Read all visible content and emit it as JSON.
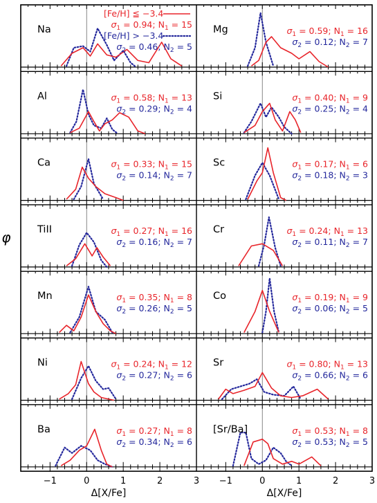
{
  "chart_data": {
    "type": "line",
    "ylabel": "φ",
    "xlabel": "Δ[X/Fe]",
    "xlim": [
      -1.8,
      3.0
    ],
    "xticks": [
      "−1",
      "0",
      "1",
      "2",
      "3"
    ],
    "legend": {
      "red_label": "[Fe/H] ≦ −3.4",
      "blue_label": "[Fe/H] > −3.4",
      "placement": "top-left panel"
    },
    "colors": {
      "red": "#e8242a",
      "blue": "#24289c"
    },
    "panels": [
      {
        "element": "Na",
        "col": 0,
        "row": 0,
        "s1": "0.94",
        "n1": "15",
        "s2": "0.46",
        "n2": "5",
        "red": [
          [
            -0.7,
            0.02
          ],
          [
            -0.4,
            0.25
          ],
          [
            -0.1,
            0.35
          ],
          [
            0.1,
            0.2
          ],
          [
            0.3,
            0.42
          ],
          [
            0.55,
            0.22
          ],
          [
            0.8,
            0.18
          ],
          [
            1.1,
            0.32
          ],
          [
            1.4,
            0.12
          ],
          [
            1.7,
            0.08
          ],
          [
            2.05,
            0.45
          ],
          [
            2.3,
            0.15
          ],
          [
            2.6,
            0.02
          ]
        ],
        "blue": [
          [
            -0.55,
            0.02
          ],
          [
            -0.35,
            0.35
          ],
          [
            -0.1,
            0.38
          ],
          [
            0.1,
            0.28
          ],
          [
            0.3,
            0.7
          ],
          [
            0.55,
            0.4
          ],
          [
            0.75,
            0.12
          ],
          [
            1.0,
            0.3
          ],
          [
            1.2,
            0.08
          ],
          [
            1.35,
            0.0
          ]
        ]
      },
      {
        "element": "Mg",
        "col": 1,
        "row": 0,
        "s1": "0.59",
        "n1": "16",
        "s2": "0.12",
        "n2": "7",
        "red": [
          [
            -0.3,
            0.02
          ],
          [
            -0.1,
            0.12
          ],
          [
            0.1,
            0.45
          ],
          [
            0.25,
            0.55
          ],
          [
            0.5,
            0.35
          ],
          [
            0.8,
            0.25
          ],
          [
            1.0,
            0.15
          ],
          [
            1.3,
            0.28
          ],
          [
            1.55,
            0.1
          ],
          [
            1.8,
            0.0
          ]
        ],
        "blue": [
          [
            -0.4,
            0.02
          ],
          [
            -0.2,
            0.35
          ],
          [
            -0.05,
            0.98
          ],
          [
            0.1,
            0.45
          ],
          [
            0.3,
            0.02
          ]
        ]
      },
      {
        "element": "Al",
        "col": 0,
        "row": 1,
        "s1": "0.58",
        "n1": "13",
        "s2": "0.29",
        "n2": "4",
        "red": [
          [
            -0.45,
            0.02
          ],
          [
            -0.2,
            0.1
          ],
          [
            0.05,
            0.4
          ],
          [
            0.2,
            0.22
          ],
          [
            0.35,
            0.05
          ],
          [
            0.5,
            0.18
          ],
          [
            0.7,
            0.25
          ],
          [
            0.9,
            0.38
          ],
          [
            1.15,
            0.3
          ],
          [
            1.4,
            0.05
          ],
          [
            1.6,
            0.0
          ]
        ],
        "blue": [
          [
            -0.45,
            0.02
          ],
          [
            -0.28,
            0.22
          ],
          [
            -0.1,
            0.8
          ],
          [
            0.05,
            0.35
          ],
          [
            0.2,
            0.15
          ],
          [
            0.4,
            0.1
          ],
          [
            0.55,
            0.28
          ],
          [
            0.7,
            0.08
          ],
          [
            0.85,
            0.0
          ]
        ]
      },
      {
        "element": "Si",
        "col": 1,
        "row": 1,
        "s1": "0.40",
        "n1": "9",
        "s2": "0.25",
        "n2": "4",
        "red": [
          [
            -0.5,
            0.02
          ],
          [
            -0.2,
            0.15
          ],
          [
            0.0,
            0.4
          ],
          [
            0.2,
            0.55
          ],
          [
            0.35,
            0.25
          ],
          [
            0.55,
            0.05
          ],
          [
            0.75,
            0.4
          ],
          [
            0.9,
            0.25
          ],
          [
            1.05,
            0.02
          ]
        ],
        "blue": [
          [
            -0.5,
            0.02
          ],
          [
            -0.3,
            0.22
          ],
          [
            -0.05,
            0.55
          ],
          [
            0.1,
            0.3
          ],
          [
            0.25,
            0.48
          ],
          [
            0.45,
            0.3
          ],
          [
            0.6,
            0.12
          ],
          [
            0.8,
            0.0
          ]
        ]
      },
      {
        "element": "Ca",
        "col": 0,
        "row": 2,
        "s1": "0.33",
        "n1": "15",
        "s2": "0.14",
        "n2": "7",
        "red": [
          [
            -0.55,
            0.02
          ],
          [
            -0.3,
            0.2
          ],
          [
            -0.12,
            0.6
          ],
          [
            0.05,
            0.4
          ],
          [
            0.25,
            0.25
          ],
          [
            0.5,
            0.12
          ],
          [
            0.8,
            0.05
          ],
          [
            1.0,
            0.0
          ]
        ],
        "blue": [
          [
            -0.35,
            0.02
          ],
          [
            -0.15,
            0.25
          ],
          [
            0.05,
            0.75
          ],
          [
            0.2,
            0.3
          ],
          [
            0.45,
            0.02
          ]
        ]
      },
      {
        "element": "Sc",
        "col": 1,
        "row": 2,
        "s1": "0.17",
        "n1": "6",
        "s2": "0.18",
        "n2": "3",
        "red": [
          [
            -0.4,
            0.02
          ],
          [
            -0.15,
            0.35
          ],
          [
            0.0,
            0.5
          ],
          [
            0.15,
            0.95
          ],
          [
            0.3,
            0.5
          ],
          [
            0.5,
            0.05
          ],
          [
            0.65,
            0.0
          ]
        ],
        "blue": [
          [
            -0.45,
            0.02
          ],
          [
            -0.2,
            0.45
          ],
          [
            0.0,
            0.68
          ],
          [
            0.2,
            0.45
          ],
          [
            0.45,
            0.02
          ]
        ]
      },
      {
        "element": "TiII",
        "col": 0,
        "row": 3,
        "s1": "0.27",
        "n1": "16",
        "s2": "0.16",
        "n2": "7",
        "red": [
          [
            -0.55,
            0.02
          ],
          [
            -0.3,
            0.15
          ],
          [
            -0.05,
            0.42
          ],
          [
            0.15,
            0.2
          ],
          [
            0.28,
            0.35
          ],
          [
            0.45,
            0.18
          ],
          [
            0.65,
            0.02
          ]
        ],
        "blue": [
          [
            -0.4,
            0.02
          ],
          [
            -0.2,
            0.4
          ],
          [
            0.0,
            0.62
          ],
          [
            0.2,
            0.45
          ],
          [
            0.4,
            0.12
          ],
          [
            0.55,
            0.0
          ]
        ]
      },
      {
        "element": "Cr",
        "col": 1,
        "row": 3,
        "s1": "0.24",
        "n1": "13",
        "s2": "0.11",
        "n2": "7",
        "red": [
          [
            -0.65,
            0.02
          ],
          [
            -0.3,
            0.38
          ],
          [
            0.0,
            0.42
          ],
          [
            0.3,
            0.3
          ],
          [
            0.55,
            0.02
          ]
        ],
        "blue": [
          [
            -0.1,
            0.02
          ],
          [
            0.05,
            0.4
          ],
          [
            0.18,
            0.9
          ],
          [
            0.35,
            0.35
          ],
          [
            0.5,
            0.02
          ]
        ]
      },
      {
        "element": "Mn",
        "col": 0,
        "row": 4,
        "s1": "0.35",
        "n1": "8",
        "s2": "0.26",
        "n2": "5",
        "red": [
          [
            -0.75,
            0.02
          ],
          [
            -0.55,
            0.15
          ],
          [
            -0.35,
            0.05
          ],
          [
            -0.15,
            0.3
          ],
          [
            0.05,
            0.7
          ],
          [
            0.25,
            0.4
          ],
          [
            0.45,
            0.18
          ],
          [
            0.65,
            0.05
          ],
          [
            0.8,
            0.0
          ]
        ],
        "blue": [
          [
            -0.45,
            0.02
          ],
          [
            -0.2,
            0.3
          ],
          [
            0.05,
            0.85
          ],
          [
            0.25,
            0.4
          ],
          [
            0.5,
            0.25
          ],
          [
            0.7,
            0.02
          ]
        ]
      },
      {
        "element": "Co",
        "col": 1,
        "row": 4,
        "s1": "0.19",
        "n1": "9",
        "s2": "0.06",
        "n2": "5",
        "red": [
          [
            -0.5,
            0.02
          ],
          [
            -0.2,
            0.4
          ],
          [
            0.0,
            0.78
          ],
          [
            0.2,
            0.4
          ],
          [
            0.45,
            0.02
          ]
        ],
        "blue": [
          [
            0.0,
            0.02
          ],
          [
            0.1,
            0.4
          ],
          [
            0.2,
            1.0
          ],
          [
            0.32,
            0.4
          ],
          [
            0.45,
            0.02
          ]
        ]
      },
      {
        "element": "Ni",
        "col": 0,
        "row": 5,
        "s1": "0.24",
        "n1": "12",
        "s2": "0.27",
        "n2": "6",
        "red": [
          [
            -0.75,
            0.02
          ],
          [
            -0.5,
            0.12
          ],
          [
            -0.3,
            0.28
          ],
          [
            -0.15,
            0.7
          ],
          [
            0.05,
            0.3
          ],
          [
            0.2,
            0.15
          ],
          [
            0.4,
            0.05
          ],
          [
            0.6,
            0.02
          ],
          [
            0.75,
            0.0
          ]
        ],
        "blue": [
          [
            -0.4,
            0.02
          ],
          [
            -0.15,
            0.4
          ],
          [
            0.05,
            0.62
          ],
          [
            0.25,
            0.35
          ],
          [
            0.45,
            0.2
          ],
          [
            0.6,
            0.22
          ],
          [
            0.8,
            0.02
          ]
        ]
      },
      {
        "element": "Sr",
        "col": 1,
        "row": 5,
        "s1": "0.80",
        "n1": "13",
        "s2": "0.66",
        "n2": "6",
        "red": [
          [
            -1.2,
            0.02
          ],
          [
            -1.0,
            0.2
          ],
          [
            -0.8,
            0.12
          ],
          [
            -0.5,
            0.18
          ],
          [
            -0.2,
            0.25
          ],
          [
            0.0,
            0.5
          ],
          [
            0.25,
            0.22
          ],
          [
            0.5,
            0.08
          ],
          [
            0.8,
            0.05
          ],
          [
            1.1,
            0.08
          ],
          [
            1.5,
            0.2
          ],
          [
            1.8,
            0.02
          ]
        ],
        "blue": [
          [
            -1.1,
            0.02
          ],
          [
            -0.85,
            0.2
          ],
          [
            -0.6,
            0.25
          ],
          [
            -0.35,
            0.3
          ],
          [
            -0.15,
            0.38
          ],
          [
            0.05,
            0.15
          ],
          [
            0.3,
            0.1
          ],
          [
            0.6,
            0.08
          ],
          [
            0.85,
            0.25
          ],
          [
            1.05,
            0.02
          ]
        ]
      },
      {
        "element": "Ba",
        "col": 0,
        "row": 6,
        "s1": "0.27",
        "n1": "8",
        "s2": "0.34",
        "n2": "6",
        "red": [
          [
            -0.7,
            0.02
          ],
          [
            -0.45,
            0.12
          ],
          [
            -0.2,
            0.3
          ],
          [
            0.0,
            0.38
          ],
          [
            0.22,
            0.68
          ],
          [
            0.4,
            0.3
          ],
          [
            0.55,
            0.05
          ],
          [
            0.7,
            0.0
          ]
        ],
        "blue": [
          [
            -0.85,
            0.02
          ],
          [
            -0.6,
            0.35
          ],
          [
            -0.4,
            0.25
          ],
          [
            -0.15,
            0.38
          ],
          [
            0.1,
            0.3
          ],
          [
            0.3,
            0.12
          ],
          [
            0.5,
            0.05
          ],
          [
            0.7,
            0.0
          ]
        ]
      },
      {
        "element": "[Sr/Ba]",
        "col": 1,
        "row": 6,
        "s1": "0.53",
        "n1": "8",
        "s2": "0.53",
        "n2": "5",
        "red": [
          [
            -0.5,
            0.02
          ],
          [
            -0.25,
            0.45
          ],
          [
            0.0,
            0.5
          ],
          [
            0.15,
            0.42
          ],
          [
            0.3,
            0.15
          ],
          [
            0.55,
            0.05
          ],
          [
            0.8,
            0.1
          ],
          [
            1.0,
            0.05
          ],
          [
            1.35,
            0.18
          ],
          [
            1.6,
            0.02
          ]
        ],
        "blue": [
          [
            -0.8,
            0.02
          ],
          [
            -0.6,
            0.62
          ],
          [
            -0.45,
            0.62
          ],
          [
            -0.3,
            0.15
          ],
          [
            -0.1,
            0.05
          ],
          [
            0.1,
            0.12
          ],
          [
            0.3,
            0.35
          ],
          [
            0.5,
            0.25
          ],
          [
            0.65,
            0.1
          ],
          [
            0.8,
            0.02
          ]
        ]
      }
    ]
  }
}
